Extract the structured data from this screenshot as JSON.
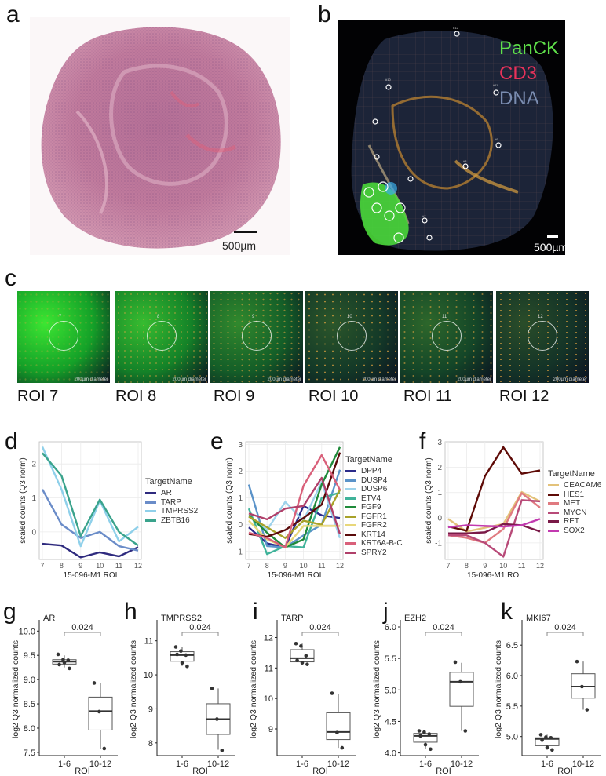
{
  "panels": {
    "a": {
      "label": "a",
      "scale": "500µm"
    },
    "b": {
      "label": "b",
      "scale": "500µm",
      "markers": [
        {
          "name": "PanCK",
          "color": "#5fe04a"
        },
        {
          "name": "CD3",
          "color": "#e8325a"
        },
        {
          "name": "DNA",
          "color": "#7a8cb0"
        }
      ],
      "roi_tags": [
        "#12",
        "#10",
        "#11",
        "#9",
        "#8",
        "#7"
      ]
    },
    "c": {
      "label": "c",
      "tiles": [
        {
          "roi": "ROI 7",
          "num": "7",
          "diameter": "200µm diameter",
          "green": 1.0
        },
        {
          "roi": "ROI 8",
          "num": "8",
          "diameter": "200µm diameter",
          "green": 0.75
        },
        {
          "roi": "ROI 9",
          "num": "9",
          "diameter": "200µm diameter",
          "green": 0.45
        },
        {
          "roi": "ROI 10",
          "num": "10",
          "diameter": "200µm diameter",
          "green": 0.15
        },
        {
          "roi": "ROI 11",
          "num": "11",
          "diameter": "200µm diameter",
          "green": 0.25
        },
        {
          "roi": "ROI 12",
          "num": "12",
          "diameter": "200µm diameter",
          "green": 0.1
        }
      ]
    },
    "d": {
      "label": "d"
    },
    "e": {
      "label": "e"
    },
    "f": {
      "label": "f"
    },
    "g": {
      "label": "g"
    },
    "h": {
      "label": "h"
    },
    "i": {
      "label": "i"
    },
    "j": {
      "label": "j"
    },
    "k": {
      "label": "k"
    }
  },
  "chart_data": [
    {
      "panel": "d",
      "type": "line",
      "x": [
        7,
        8,
        9,
        10,
        11,
        12
      ],
      "xticks": [
        "7",
        "8",
        "9",
        "10",
        "11",
        "12"
      ],
      "xlabel": "15-096-M1 ROI",
      "ylabel": "scaled counts (Q3 norm)",
      "ylim": [
        -0.81,
        2.65
      ],
      "yticks": [
        0,
        1,
        2
      ],
      "legend_title": "TargetName",
      "legend": "right",
      "grid": true,
      "series": [
        {
          "name": "AR",
          "color": "#2e2a7e",
          "values": [
            -0.35,
            -0.4,
            -0.75,
            -0.6,
            -0.72,
            -0.45
          ]
        },
        {
          "name": "TARP",
          "color": "#6a8cc8",
          "values": [
            1.25,
            0.22,
            -0.18,
            0.0,
            -0.42,
            -0.55
          ]
        },
        {
          "name": "TMPRSS2",
          "color": "#8fd0ea",
          "values": [
            2.5,
            1.25,
            -0.42,
            0.92,
            -0.28,
            0.15
          ]
        },
        {
          "name": "ZBTB16",
          "color": "#3aa38c",
          "values": [
            2.32,
            1.65,
            -0.12,
            0.95,
            0.0,
            -0.4
          ]
        }
      ]
    },
    {
      "panel": "e",
      "type": "line",
      "x": [
        7,
        8,
        9,
        10,
        11,
        12
      ],
      "xticks": [
        "7",
        "8",
        "9",
        "10",
        "11",
        "12"
      ],
      "xlabel": "15-096-M1 ROI",
      "ylabel": "scaled counts (Q3 norm)",
      "ylim": [
        -1.3,
        3.1
      ],
      "yticks": [
        -1,
        0,
        1,
        2,
        3
      ],
      "legend_title": "TargetName",
      "legend": "right",
      "grid": true,
      "series": [
        {
          "name": "DPP4",
          "color": "#2b2b8a",
          "values": [
            -0.1,
            -0.7,
            -0.85,
            0.7,
            0.35,
            0.25
          ]
        },
        {
          "name": "DUSP4",
          "color": "#5b93c9",
          "values": [
            1.5,
            -0.8,
            -0.85,
            -0.4,
            0.0,
            2.05
          ]
        },
        {
          "name": "DUSP6",
          "color": "#9ed3ec",
          "values": [
            0.3,
            -0.2,
            0.85,
            0.15,
            1.6,
            -0.5
          ]
        },
        {
          "name": "ETV4",
          "color": "#3fb39a",
          "values": [
            0.6,
            -1.1,
            -0.8,
            -0.85,
            1.0,
            1.2
          ]
        },
        {
          "name": "FGF9",
          "color": "#1f8a3a",
          "values": [
            0.35,
            -0.3,
            -0.85,
            -0.55,
            1.5,
            2.9
          ]
        },
        {
          "name": "FGFR1",
          "color": "#a8a22a",
          "values": [
            0.3,
            -0.1,
            -0.5,
            0.15,
            0.0,
            1.3
          ]
        },
        {
          "name": "FGFR2",
          "color": "#e8d77a",
          "values": [
            0.15,
            -0.55,
            -0.85,
            -0.05,
            -0.05,
            -0.05
          ]
        },
        {
          "name": "KRT14",
          "color": "#5a0a0a",
          "values": [
            -0.35,
            -0.45,
            -0.2,
            0.25,
            0.75,
            2.7
          ]
        },
        {
          "name": "KRT6A-B-C",
          "color": "#d9607a",
          "values": [
            -0.3,
            -0.5,
            -0.85,
            1.45,
            2.6,
            1.3
          ]
        },
        {
          "name": "SPRY2",
          "color": "#b0406a",
          "values": [
            0.42,
            0.2,
            0.6,
            0.7,
            1.75,
            -0.35
          ]
        }
      ]
    },
    {
      "panel": "f",
      "type": "line",
      "x": [
        7,
        8,
        9,
        10,
        11,
        12
      ],
      "xticks": [
        "7",
        "8",
        "9",
        "10",
        "11",
        "12"
      ],
      "xlabel": "15-096-M1 ROI",
      "ylabel": "scaled counts (Q3 norm)",
      "ylim": [
        -1.66,
        3.02
      ],
      "yticks": [
        -1,
        0,
        1,
        2,
        3
      ],
      "legend_title": "TargetName",
      "legend": "right",
      "grid": true,
      "series": [
        {
          "name": "CEACAM6",
          "color": "#e3c27a",
          "values": [
            -0.05,
            -0.55,
            -0.4,
            -0.25,
            1.02,
            0.65
          ]
        },
        {
          "name": "HES1",
          "color": "#5e0a06",
          "values": [
            -0.35,
            -0.52,
            1.65,
            2.8,
            1.75,
            1.88
          ]
        },
        {
          "name": "MET",
          "color": "#e07a80",
          "values": [
            -0.7,
            -0.8,
            -1.0,
            -0.45,
            0.98,
            0.4
          ]
        },
        {
          "name": "MYCN",
          "color": "#b84a78",
          "values": [
            -0.7,
            -0.7,
            -1.0,
            -1.55,
            0.7,
            0.65
          ]
        },
        {
          "name": "RET",
          "color": "#7a1a48",
          "values": [
            -0.62,
            -0.62,
            -0.58,
            -0.25,
            -0.3,
            -0.55
          ]
        },
        {
          "name": "SOX2",
          "color": "#c23ab0",
          "values": [
            -0.38,
            -0.3,
            -0.33,
            -0.35,
            -0.3,
            -0.05
          ]
        }
      ]
    },
    {
      "panel": "g",
      "type": "box",
      "title": "AR",
      "xlabel": "ROI",
      "ylabel": "log2 Q3 normalized counts",
      "categories": [
        "1-6",
        "10-12"
      ],
      "ylim": [
        7.45,
        10.15
      ],
      "yticks": [
        "7.5",
        "8.0",
        "8.5",
        "9.0",
        "9.5",
        "10.0"
      ],
      "pvalue": "0.024",
      "boxes": [
        {
          "q1": 9.32,
          "median": 9.37,
          "q3": 9.41,
          "low": 9.25,
          "high": 9.5,
          "points": [
            9.52,
            9.41,
            9.4,
            9.31,
            9.35,
            9.23
          ]
        },
        {
          "q1": 7.96,
          "median": 8.35,
          "q3": 8.64,
          "low": 7.58,
          "high": 8.93,
          "points": [
            8.93,
            8.34,
            7.58
          ]
        }
      ]
    },
    {
      "panel": "h",
      "type": "box",
      "title": "TMPRSS2",
      "xlabel": "ROI",
      "ylabel": "log2 Q3 normalized counts",
      "categories": [
        "1-6",
        "10-12"
      ],
      "ylim": [
        7.65,
        11.5
      ],
      "yticks": [
        "8",
        "9",
        "10",
        "11"
      ],
      "pvalue": "0.024",
      "boxes": [
        {
          "q1": 10.4,
          "median": 10.58,
          "q3": 10.68,
          "low": 10.26,
          "high": 10.82,
          "points": [
            10.82,
            10.7,
            10.58,
            10.6,
            10.35,
            10.25
          ]
        },
        {
          "q1": 8.25,
          "median": 8.7,
          "q3": 9.15,
          "low": 7.8,
          "high": 9.6,
          "points": [
            9.6,
            8.7,
            7.78
          ]
        }
      ]
    },
    {
      "panel": "i",
      "type": "box",
      "title": "TARP",
      "xlabel": "ROI",
      "ylabel": "log2 Q3 normalized counts",
      "categories": [
        "1-6",
        "10-12"
      ],
      "ylim": [
        8.15,
        12.45
      ],
      "yticks": [
        "9",
        "10",
        "11",
        "12"
      ],
      "pvalue": "0.024",
      "boxes": [
        {
          "q1": 11.2,
          "median": 11.32,
          "q3": 11.6,
          "low": 11.12,
          "high": 11.8,
          "points": [
            11.8,
            11.72,
            11.4,
            11.25,
            11.17,
            11.12
          ]
        },
        {
          "q1": 8.65,
          "median": 8.9,
          "q3": 9.53,
          "low": 8.38,
          "high": 10.15,
          "points": [
            10.17,
            8.88,
            8.38
          ]
        }
      ]
    },
    {
      "panel": "j",
      "type": "box",
      "title": "EZH2",
      "xlabel": "ROI",
      "ylabel": "log2 Q3 normalized counts",
      "categories": [
        "1-6",
        "10-12"
      ],
      "ylim": [
        3.97,
        6.05
      ],
      "yticks": [
        "4.0",
        "4.5",
        "5.0",
        "5.5",
        "6.0"
      ],
      "pvalue": "0.024",
      "boxes": [
        {
          "q1": 4.17,
          "median": 4.27,
          "q3": 4.31,
          "low": 4.06,
          "high": 4.35,
          "points": [
            4.35,
            4.33,
            4.3,
            4.27,
            4.13,
            4.06
          ]
        },
        {
          "q1": 4.74,
          "median": 5.13,
          "q3": 5.28,
          "low": 4.35,
          "high": 5.43,
          "points": [
            5.44,
            5.13,
            4.35
          ]
        }
      ]
    },
    {
      "panel": "k",
      "type": "box",
      "title": "MKI67",
      "xlabel": "ROI",
      "ylabel": "log2 Q3 normalized counts",
      "categories": [
        "1-6",
        "10-12"
      ],
      "ylim": [
        4.7,
        6.85
      ],
      "yticks": [
        "5.0",
        "5.5",
        "6.0",
        "6.5"
      ],
      "pvalue": "0.024",
      "boxes": [
        {
          "q1": 4.85,
          "median": 4.96,
          "q3": 4.98,
          "low": 4.78,
          "high": 5.03,
          "points": [
            5.03,
            4.99,
            4.98,
            4.94,
            4.82,
            4.78
          ]
        },
        {
          "q1": 5.63,
          "median": 5.82,
          "q3": 6.03,
          "low": 5.44,
          "high": 6.23,
          "points": [
            6.23,
            5.82,
            5.44
          ]
        }
      ]
    }
  ]
}
